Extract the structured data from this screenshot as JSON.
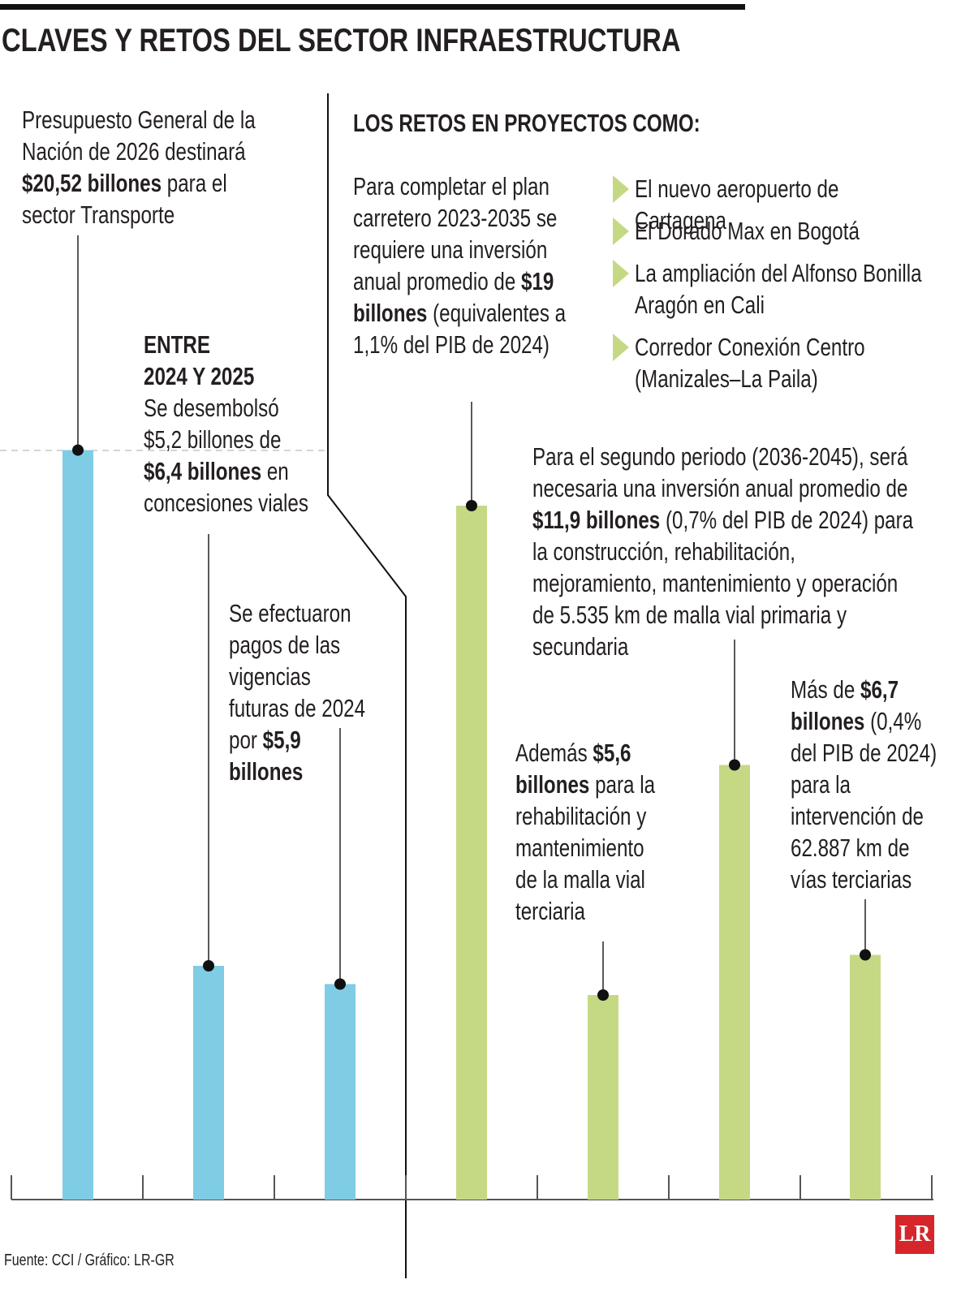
{
  "title": "CLAVES Y RETOS DEL SECTOR INFRAESTRUCTURA",
  "chart_data": {
    "type": "bar",
    "values": [
      20.52,
      6.4,
      5.9,
      19,
      5.6,
      11.9,
      6.7
    ],
    "colors": [
      "#7ecde4",
      "#7ecde4",
      "#7ecde4",
      "#c5d985",
      "#c5d985",
      "#c5d985",
      "#c5d985"
    ],
    "annotations": [
      [
        {
          "text": "Presupuesto General de la Nación de 2026 destinará "
        },
        {
          "text": "$20,52 billones",
          "bold": true
        },
        {
          "text": " para el sector Transporte"
        }
      ],
      [
        {
          "text": "ENTRE 2024 Y 2025",
          "bold": true
        },
        {
          "text": "Se desembolsó $5,2 billones de "
        },
        {
          "text": "$6,4 billones",
          "bold": true
        },
        {
          "text": " en concesiones viales"
        }
      ],
      [
        {
          "text": "Se efectuaron pagos de las vigencias futuras de 2024 por "
        },
        {
          "text": "$5,9 billones",
          "bold": true
        }
      ],
      [
        {
          "text": "Para completar el plan carretero 2023-2035 se requiere una inversión anual promedio de "
        },
        {
          "text": "$19 billones",
          "bold": true
        },
        {
          "text": " (equivalentes a 1,1% del PIB de 2024)"
        }
      ],
      [
        {
          "text": "Además "
        },
        {
          "text": "$5,6 billones",
          "bold": true
        },
        {
          "text": " para la rehabilitación y mantenimiento de la malla vial terciaria"
        }
      ],
      [
        {
          "text": "Para el segundo periodo (2036-2045), será necesaria una inversión anual promedio de "
        },
        {
          "text": "$11,9 billones",
          "bold": true
        },
        {
          "text": " (0,7% del PIB de 2024) para la construcción, rehabilitación, mejoramiento, mantenimiento y operación de 5.535 km de malla vial primaria y secundaria"
        }
      ],
      [
        {
          "text": "Más de "
        },
        {
          "text": "$6,7 billones",
          "bold": true
        },
        {
          "text": " (0,4% del PIB de 2024) para la intervención de 62.887 km de vías terciarias"
        }
      ]
    ]
  },
  "projects_heading": "LOS RETOS EN PROYECTOS COMO:",
  "projects": [
    "El nuevo aeropuerto de Cartagena",
    "El Dorado Max en Bogotá",
    "La ampliación del Alfonso Bonilla Aragón en Cali",
    "Corredor Conexión Centro (Manizales–La Paila)"
  ],
  "source": "Fuente: CCI / Gráfico: LR-GR",
  "logo": "LR"
}
